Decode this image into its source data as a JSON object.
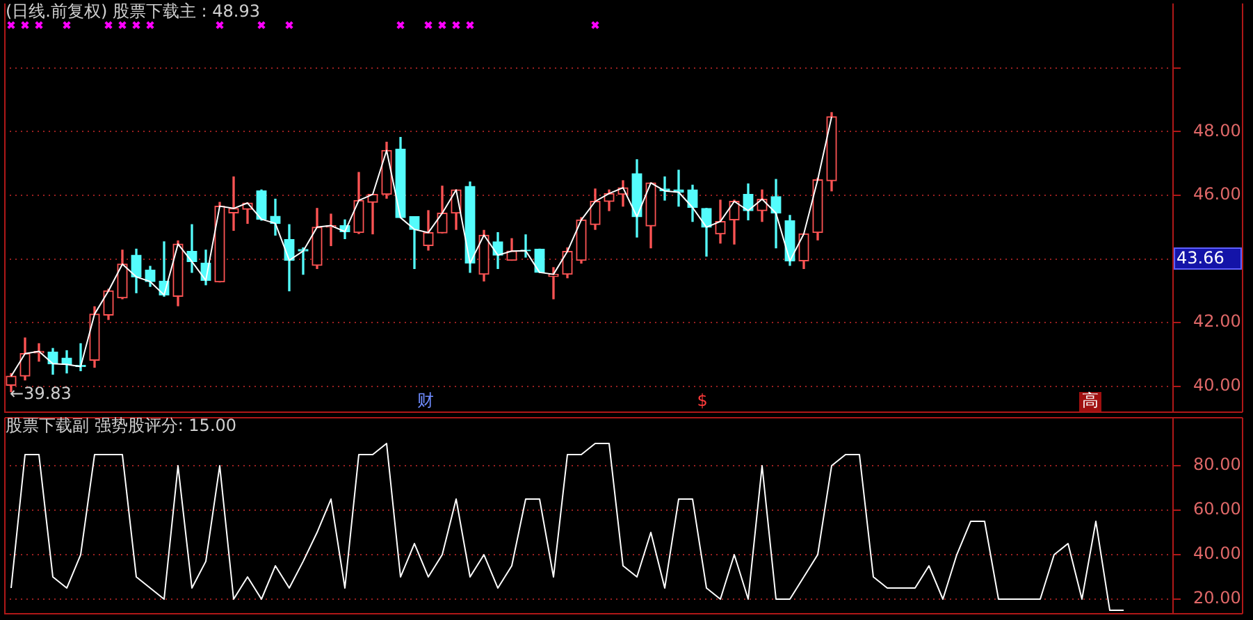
{
  "chart_data": [
    {
      "type": "candlestick",
      "title": "(日线.前复权) 股票下载主 : 48.93",
      "categories": [
        null,
        null,
        null,
        null,
        null,
        null,
        null,
        null,
        null,
        null,
        null,
        null,
        null,
        null,
        null,
        null,
        null,
        null,
        null,
        null,
        null,
        null,
        null,
        null,
        null,
        null,
        null,
        null,
        null,
        null,
        null,
        null,
        null,
        null,
        null,
        null,
        null,
        null,
        null,
        null,
        null,
        null,
        null,
        null,
        null,
        null,
        null,
        null,
        null,
        null,
        null,
        null,
        null,
        null,
        null,
        null,
        null,
        null,
        null,
        null,
        null,
        null,
        null,
        null,
        null,
        null,
        null,
        null,
        null,
        null,
        null,
        null,
        null,
        null,
        null,
        null,
        null,
        null,
        null,
        null,
        null,
        null,
        null,
        null
      ],
      "ohlc": [
        [
          40.03,
          40.4,
          39.83,
          40.32
        ],
        [
          40.32,
          41.52,
          40.2,
          41.03
        ],
        [
          41.05,
          41.34,
          40.79,
          41.1
        ],
        [
          41.08,
          41.19,
          40.38,
          40.71
        ],
        [
          40.89,
          41.12,
          40.42,
          40.69
        ],
        [
          40.66,
          41.34,
          40.49,
          40.62
        ],
        [
          40.82,
          42.5,
          40.6,
          42.27
        ],
        [
          42.24,
          43.05,
          42.1,
          43.0
        ],
        [
          42.78,
          44.28,
          42.75,
          43.84
        ],
        [
          44.12,
          44.31,
          42.94,
          43.44
        ],
        [
          43.65,
          43.77,
          43.14,
          43.29
        ],
        [
          43.3,
          44.54,
          42.83,
          42.87
        ],
        [
          42.83,
          44.57,
          42.53,
          44.47
        ],
        [
          44.24,
          45.08,
          43.58,
          43.92
        ],
        [
          43.87,
          44.28,
          43.19,
          43.33
        ],
        [
          43.28,
          45.78,
          43.28,
          45.66
        ],
        [
          45.45,
          46.58,
          44.9,
          45.59
        ],
        [
          45.56,
          45.76,
          45.12,
          45.76
        ],
        [
          46.14,
          46.17,
          45.22,
          45.25
        ],
        [
          45.34,
          45.88,
          44.75,
          45.12
        ],
        [
          44.61,
          45.08,
          43.0,
          43.96
        ],
        [
          44.3,
          44.35,
          43.52,
          44.25
        ],
        [
          43.8,
          45.59,
          43.7,
          45.0
        ],
        [
          45.0,
          45.41,
          44.42,
          45.05
        ],
        [
          45.05,
          45.23,
          44.64,
          44.86
        ],
        [
          44.83,
          46.72,
          44.8,
          45.84
        ],
        [
          45.78,
          46.03,
          44.79,
          46.03
        ],
        [
          46.03,
          47.67,
          45.91,
          47.41
        ],
        [
          47.45,
          47.82,
          45.3,
          45.3
        ],
        [
          45.33,
          45.33,
          43.7,
          44.93
        ],
        [
          44.42,
          45.52,
          44.28,
          44.83
        ],
        [
          44.82,
          46.29,
          44.82,
          45.44
        ],
        [
          45.44,
          46.17,
          44.93,
          46.17
        ],
        [
          46.28,
          46.42,
          43.58,
          43.87
        ],
        [
          43.52,
          44.9,
          43.31,
          44.75
        ],
        [
          44.54,
          44.83,
          43.7,
          44.12
        ],
        [
          43.96,
          44.64,
          43.96,
          44.25
        ],
        [
          44.28,
          44.76,
          44.06,
          44.26
        ],
        [
          44.31,
          44.31,
          43.58,
          43.58
        ],
        [
          43.45,
          43.73,
          42.75,
          43.52
        ],
        [
          43.52,
          44.35,
          43.41,
          44.24
        ],
        [
          43.96,
          45.3,
          43.87,
          45.23
        ],
        [
          45.08,
          46.2,
          44.93,
          45.81
        ],
        [
          45.81,
          46.17,
          45.52,
          46.06
        ],
        [
          46.03,
          46.46,
          45.66,
          46.24
        ],
        [
          46.68,
          47.12,
          44.69,
          45.33
        ],
        [
          45.04,
          46.39,
          44.35,
          46.39
        ],
        [
          46.2,
          46.58,
          45.85,
          46.14
        ],
        [
          46.17,
          46.79,
          45.66,
          46.1
        ],
        [
          46.17,
          46.32,
          45.18,
          45.62
        ],
        [
          45.59,
          45.59,
          44.09,
          45.0
        ],
        [
          44.79,
          45.85,
          44.5,
          45.18
        ],
        [
          45.23,
          45.85,
          44.47,
          45.81
        ],
        [
          46.03,
          46.36,
          45.23,
          45.52
        ],
        [
          45.52,
          46.17,
          45.18,
          45.88
        ],
        [
          45.96,
          46.5,
          44.35,
          45.44
        ],
        [
          45.2,
          45.37,
          43.8,
          43.94
        ],
        [
          43.94,
          44.79,
          43.7,
          44.79
        ],
        [
          44.83,
          46.54,
          44.6,
          46.49
        ],
        [
          46.46,
          48.6,
          46.14,
          48.47
        ],
        null,
        null,
        null,
        null,
        null,
        null,
        null,
        null,
        null,
        null,
        null,
        null,
        null,
        null,
        null,
        null,
        null,
        null,
        null,
        null,
        null,
        null,
        null,
        null
      ],
      "colors": [
        "#ff5454",
        "#ff5454",
        "#ff5454",
        "#54fcfc",
        "#54fcfc",
        "#54fcfc",
        "#ff5454",
        "#ff5454",
        "#ff5454",
        "#54fcfc",
        "#54fcfc",
        "#54fcfc",
        "#ff5454",
        "#54fcfc",
        "#54fcfc",
        "#ff5454",
        "#ff5454",
        "#ff5454",
        "#54fcfc",
        "#54fcfc",
        "#54fcfc",
        "#54fcfc",
        "#ff5454",
        "#ff5454",
        "#54fcfc",
        "#ff5454",
        "#ff5454",
        "#ff5454",
        "#54fcfc",
        "#54fcfc",
        "#ff5454",
        "#ff5454",
        "#ff5454",
        "#54fcfc",
        "#ff5454",
        "#54fcfc",
        "#ff5454",
        "#54fcfc",
        "#54fcfc",
        "#ff5454",
        "#ff5454",
        "#ff5454",
        "#ff5454",
        "#ff5454",
        "#ff5454",
        "#54fcfc",
        "#ff5454",
        "#54fcfc",
        "#54fcfc",
        "#54fcfc",
        "#54fcfc",
        "#ff5454",
        "#ff5454",
        "#54fcfc",
        "#ff5454",
        "#54fcfc",
        "#54fcfc",
        "#ff5454",
        "#ff5454",
        "#ff5454",
        null,
        null,
        null,
        null,
        null,
        null,
        null,
        null,
        null,
        null,
        null,
        null,
        null,
        null,
        null,
        null,
        null,
        null,
        null,
        null,
        null,
        null,
        null,
        null
      ],
      "series": [
        {
          "type": "line",
          "color": "#ffffff",
          "values": [
            40.32,
            41.03,
            41.1,
            40.71,
            40.69,
            40.62,
            42.27,
            43.0,
            43.84,
            43.44,
            43.29,
            42.87,
            44.47,
            43.92,
            43.33,
            45.66,
            45.59,
            45.76,
            45.25,
            45.12,
            43.96,
            44.25,
            45.0,
            45.05,
            44.86,
            45.84,
            46.03,
            47.41,
            45.3,
            44.93,
            44.83,
            45.44,
            46.17,
            43.87,
            44.75,
            44.12,
            44.25,
            44.26,
            43.58,
            43.52,
            44.24,
            45.23,
            45.81,
            46.06,
            46.24,
            45.33,
            46.39,
            46.14,
            46.1,
            45.62,
            45.0,
            45.18,
            45.81,
            45.52,
            45.88,
            45.44,
            43.94,
            44.79,
            46.49,
            48.47,
            null,
            null,
            null,
            null,
            null,
            null,
            null,
            null,
            null,
            null,
            null,
            null,
            null,
            null,
            null,
            null,
            null,
            null,
            null,
            null,
            null,
            null,
            null,
            null
          ]
        },
        {
          "type": "scatter",
          "color": "#ff00ff",
          "marker": "cross",
          "values": [
            51.35,
            51.35,
            51.35,
            null,
            51.35,
            null,
            null,
            51.35,
            51.35,
            51.35,
            51.35,
            null,
            null,
            null,
            null,
            51.35,
            null,
            null,
            51.35,
            null,
            51.35,
            null,
            null,
            null,
            null,
            null,
            null,
            null,
            51.35,
            null,
            51.35,
            51.35,
            51.35,
            51.35,
            null,
            null,
            null,
            null,
            null,
            null,
            null,
            null,
            51.35,
            null,
            null,
            null,
            null,
            null,
            null,
            null,
            null,
            null,
            null,
            null,
            null,
            null,
            null,
            null,
            null,
            null,
            null,
            null,
            null,
            null,
            null,
            null,
            null,
            null,
            null,
            null,
            null,
            null,
            null,
            null,
            null,
            null,
            null,
            null,
            null,
            null,
            null,
            null,
            null,
            null
          ]
        }
      ],
      "ylim": [
        39.21,
        52.05
      ],
      "yticks": [
        {
          "value": 40,
          "label": "40.00"
        },
        {
          "value": 42,
          "label": "42.00"
        },
        {
          "value": 44,
          "label": null
        },
        {
          "value": 46,
          "label": "46.00"
        },
        {
          "value": 48,
          "label": "48.00"
        },
        {
          "value": 50,
          "label": null
        }
      ],
      "grid": "y",
      "annotations": [
        "←39.83",
        "43.66",
        "财",
        "$",
        "高"
      ]
    },
    {
      "type": "line",
      "title": "股票下载副 强势股评分: 15.00",
      "categories": [
        null,
        null,
        null,
        null,
        null,
        null,
        null,
        null,
        null,
        null,
        null,
        null,
        null,
        null,
        null,
        null,
        null,
        null,
        null,
        null,
        null,
        null,
        null,
        null,
        null,
        null,
        null,
        null,
        null,
        null,
        null,
        null,
        null,
        null,
        null,
        null,
        null,
        null,
        null,
        null,
        null,
        null,
        null,
        null,
        null,
        null,
        null,
        null,
        null,
        null,
        null,
        null,
        null,
        null,
        null,
        null,
        null,
        null,
        null,
        null,
        null,
        null,
        null,
        null,
        null,
        null,
        null,
        null,
        null,
        null,
        null,
        null,
        null,
        null,
        null,
        null,
        null,
        null,
        null,
        null,
        null,
        null,
        null,
        null
      ],
      "values": [
        25,
        85,
        85,
        30,
        25,
        40,
        85,
        85,
        85,
        30,
        25,
        20,
        80,
        25,
        37,
        80,
        20,
        30,
        20,
        35,
        25,
        37,
        50,
        65,
        25,
        85,
        85,
        90,
        30,
        45,
        30,
        40,
        65,
        30,
        40,
        25,
        35,
        65,
        65,
        30,
        85,
        85,
        90,
        90,
        35,
        30,
        50,
        25,
        65,
        65,
        25,
        20,
        40,
        20,
        80,
        20,
        20,
        30,
        40,
        80,
        85,
        85,
        30,
        25,
        25,
        25,
        35,
        20,
        40,
        55,
        55,
        20,
        20,
        20,
        20,
        40,
        45,
        20,
        55,
        15,
        15,
        null,
        null,
        null
      ],
      "color": "#ffffff",
      "ylim": [
        13.75,
        101.9
      ],
      "yticks": [
        {
          "value": 20,
          "label": "20.00"
        },
        {
          "value": 40,
          "label": "40.00"
        },
        {
          "value": 60,
          "label": "60.00"
        },
        {
          "value": 80,
          "label": "80.00"
        }
      ],
      "grid": "y"
    }
  ]
}
